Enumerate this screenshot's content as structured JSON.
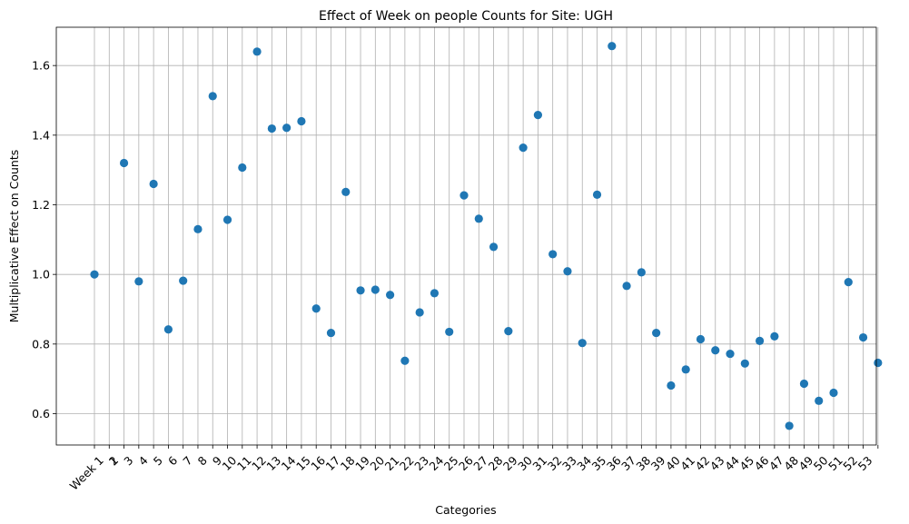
{
  "chart_data": {
    "type": "scatter",
    "title": "Effect of Week on people Counts for Site: UGH",
    "xlabel": "Categories",
    "ylabel": "Multiplicative Effect on Counts",
    "categories": [
      "Week 1",
      "2",
      "3",
      "4",
      "5",
      "6",
      "7",
      "8",
      "9",
      "10",
      "11",
      "12",
      "13",
      "14",
      "15",
      "16",
      "17",
      "18",
      "19",
      "20",
      "21",
      "22",
      "23",
      "24",
      "25",
      "26",
      "27",
      "28",
      "29",
      "30",
      "31",
      "32",
      "33",
      "34",
      "35",
      "36",
      "37",
      "38",
      "39",
      "40",
      "41",
      "42",
      "43",
      "44",
      "45",
      "46",
      "47",
      "48",
      "49",
      "50",
      "51",
      "52",
      "53"
    ],
    "tick_order": [
      "Week 1",
      "1",
      "2",
      "3",
      "4",
      "5",
      "6",
      "7",
      "8",
      "9",
      "10",
      "11",
      "12",
      "13",
      "14",
      "15",
      "16",
      "17",
      "18",
      "19",
      "20",
      "21",
      "22",
      "23",
      "24",
      "25",
      "26",
      "27",
      "28",
      "29",
      "30",
      "31",
      "32",
      "33",
      "34",
      "35",
      "36",
      "37",
      "38",
      "39",
      "40",
      "41",
      "42",
      "43",
      "44",
      "45",
      "46",
      "47",
      "48",
      "49",
      "50",
      "51",
      "52",
      "53"
    ],
    "tick_text": [
      "Week 1",
      "1",
      "3",
      "4",
      "5",
      "6",
      "7",
      "8",
      "9",
      "10",
      "11",
      "12",
      "13",
      "14",
      "15",
      "16",
      "17",
      "18",
      "19",
      "20",
      "21",
      "22",
      "23",
      "24",
      "25",
      "26",
      "27",
      "28",
      "29",
      "30",
      "31",
      "32",
      "33",
      "34",
      "35",
      "36",
      "37",
      "38",
      "39",
      "40",
      "41",
      "42",
      "43",
      "44",
      "45",
      "46",
      "47",
      "48",
      "49",
      "50",
      "51",
      "52",
      "53",
      "2"
    ],
    "values": [
      1.0,
      1.32,
      0.98,
      1.26,
      0.842,
      0.982,
      1.13,
      1.512,
      1.157,
      1.307,
      1.64,
      1.419,
      1.421,
      1.44,
      0.902,
      0.832,
      1.237,
      0.954,
      0.956,
      0.941,
      0.752,
      0.891,
      0.946,
      0.835,
      1.227,
      1.16,
      1.079,
      0.837,
      1.364,
      1.458,
      1.058,
      1.009,
      0.803,
      1.229,
      1.656,
      0.967,
      1.006,
      0.832,
      0.681,
      0.727,
      0.814,
      0.782,
      0.772,
      0.744,
      0.809,
      0.822,
      0.565,
      0.686,
      0.637,
      0.66,
      0.978,
      0.819,
      0.746
    ],
    "yticks": [
      0.6,
      0.8,
      1.0,
      1.2,
      1.4,
      1.6
    ],
    "ylim": [
      0.51,
      1.71
    ],
    "grid": true,
    "marker_color": "#1f77b4"
  }
}
